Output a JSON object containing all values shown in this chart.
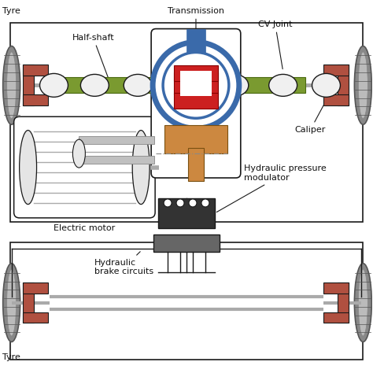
{
  "bg_color": "#ffffff",
  "line_color": "#1a1a1a",
  "tyre_dark": "#555555",
  "tyre_mid": "#888888",
  "tyre_light": "#bbbbbb",
  "brake_color": "#b05040",
  "axle_green": "#7a9a30",
  "axle_green_dark": "#4a6a10",
  "transmission_blue": "#3a6aaa",
  "transmission_red": "#cc2020",
  "transmission_orange": "#cc8840",
  "modulator_dark": "#333333",
  "modulator_mid": "#666666",
  "shaft_color": "#aaaaaa",
  "shaft_dark": "#888888",
  "motor_body": "#eeeeee",
  "motor_lines": "#aaaaaa",
  "cv_fill": "#f0f0f0",
  "label_color": "#111111",
  "labels": {
    "tyre_tl": "Tyre",
    "tyre_bl": "Tyre",
    "half_shaft": "Half-shaft",
    "transmission": "Transmission",
    "cv_joint": "CV Joint",
    "caliper": "Caliper",
    "electric_motor": "Electric motor",
    "hydraulic_pressure": "Hydraulic pressure\nmodulator",
    "hydraulic_brake": "Hydraulic\nbrake circuits"
  },
  "figsize": [
    4.74,
    4.74
  ],
  "dpi": 100
}
